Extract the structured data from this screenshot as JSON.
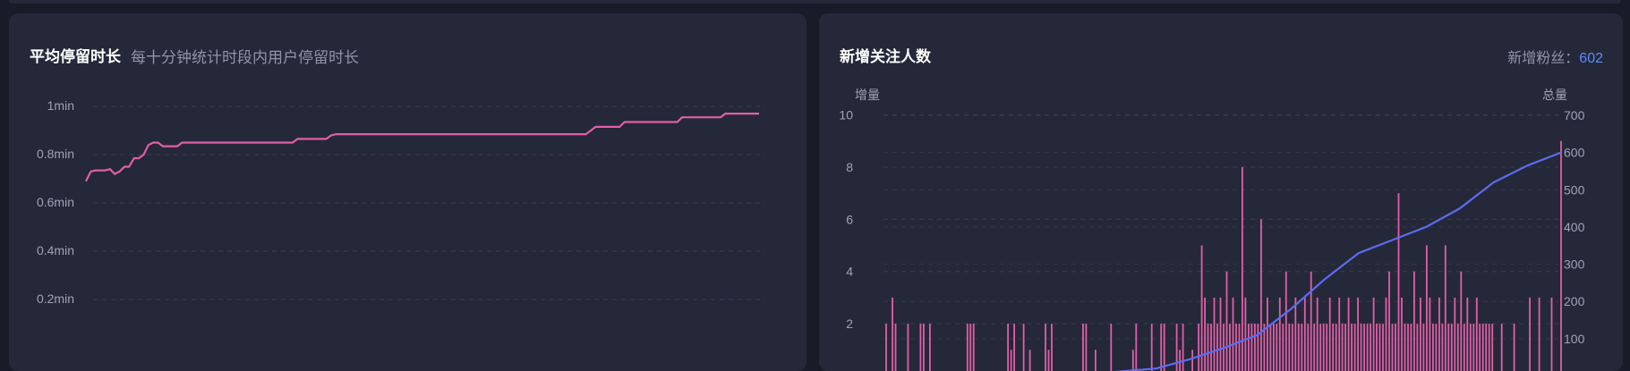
{
  "left_panel": {
    "title": "平均停留时长",
    "subtitle": "每十分钟统计时段内用户停留时长"
  },
  "right_panel": {
    "title": "新增关注人数",
    "fans_label": "新增粉丝：",
    "fans_value": "602",
    "left_axis_label": "增量",
    "right_axis_label": "总量"
  },
  "colors": {
    "background": "#191b28",
    "panel": "#252839",
    "pink_series": "#e05fa8",
    "blue_series": "#5b6cf0",
    "grid": "#3a3e52",
    "axis_text": "#9ea3b5"
  },
  "chart_data": [
    {
      "type": "line",
      "title": "平均停留时长",
      "subtitle": "每十分钟统计时段内用户停留时长",
      "y_tick_labels": [
        "0.2min",
        "0.4min",
        "0.6min",
        "0.8min",
        "1min"
      ],
      "y_tick_values": [
        0.2,
        0.4,
        0.6,
        0.8,
        1.0
      ],
      "ylim": [
        0,
        1.0
      ],
      "grid": true,
      "series": [
        {
          "color": "#e05fa8",
          "values": [
            0.69,
            0.73,
            0.735,
            0.735,
            0.735,
            0.74,
            0.72,
            0.73,
            0.75,
            0.75,
            0.785,
            0.785,
            0.8,
            0.84,
            0.85,
            0.85,
            0.835,
            0.835,
            0.835,
            0.835,
            0.85,
            0.85,
            0.85,
            0.85,
            0.85,
            0.85,
            0.85,
            0.85,
            0.85,
            0.85,
            0.85,
            0.85,
            0.85,
            0.85,
            0.85,
            0.85,
            0.85,
            0.85,
            0.85,
            0.85,
            0.85,
            0.85,
            0.85,
            0.85,
            0.865,
            0.865,
            0.865,
            0.865,
            0.865,
            0.865,
            0.865,
            0.88,
            0.885,
            0.885,
            0.885,
            0.885,
            0.885,
            0.885,
            0.885,
            0.885,
            0.885,
            0.885,
            0.885,
            0.885,
            0.885,
            0.885,
            0.885,
            0.885,
            0.885,
            0.885,
            0.885,
            0.885,
            0.885,
            0.885,
            0.885,
            0.885,
            0.885,
            0.885,
            0.885,
            0.885,
            0.885,
            0.885,
            0.885,
            0.885,
            0.885,
            0.885,
            0.885,
            0.885,
            0.885,
            0.885,
            0.885,
            0.885,
            0.885,
            0.885,
            0.885,
            0.885,
            0.885,
            0.885,
            0.885,
            0.885,
            0.885,
            0.885,
            0.885,
            0.885,
            0.885,
            0.9,
            0.915,
            0.915,
            0.915,
            0.915,
            0.915,
            0.915,
            0.935,
            0.935,
            0.935,
            0.935,
            0.935,
            0.935,
            0.935,
            0.935,
            0.935,
            0.935,
            0.935,
            0.935,
            0.955,
            0.955,
            0.955,
            0.955,
            0.955,
            0.955,
            0.955,
            0.955,
            0.955,
            0.97,
            0.97,
            0.97,
            0.97,
            0.97,
            0.97,
            0.97,
            0.97
          ]
        }
      ]
    },
    {
      "type": "bar+line",
      "title": "新增关注人数",
      "y_left_label": "增量",
      "y_right_label": "总量",
      "y_left_ticks": [
        2,
        4,
        6,
        8,
        10
      ],
      "y_right_ticks": [
        100,
        200,
        300,
        400,
        500,
        600,
        700
      ],
      "ylim_left": [
        0,
        10
      ],
      "ylim_right": [
        0,
        700
      ],
      "grid": true,
      "series": [
        {
          "name": "增量",
          "type": "bar",
          "color": "#e05fa8",
          "values": [
            2,
            0,
            3,
            2,
            0,
            0,
            0,
            2,
            0,
            0,
            0,
            2,
            2,
            0,
            2,
            0,
            0,
            0,
            0,
            0,
            0,
            0,
            0,
            0,
            0,
            0,
            2,
            2,
            2,
            0,
            0,
            0,
            0,
            0,
            0,
            0,
            0,
            0,
            0,
            2,
            1,
            2,
            0,
            0,
            2,
            0,
            1,
            0,
            0,
            0,
            0,
            2,
            1,
            2,
            0,
            0,
            0,
            0,
            0,
            0,
            0,
            0,
            0,
            2,
            2,
            0,
            0,
            1,
            0,
            0,
            0,
            0,
            2,
            0,
            0,
            0,
            0,
            0,
            0,
            1,
            2,
            0,
            0,
            0,
            0,
            2,
            0,
            0,
            2,
            2,
            0,
            0,
            0,
            2,
            1,
            2,
            0,
            0,
            1,
            0,
            2,
            5,
            3,
            2,
            2,
            3,
            2,
            3,
            2,
            4,
            2,
            3,
            2,
            2,
            8,
            3,
            2,
            2,
            2,
            2,
            6,
            2,
            3,
            2,
            2,
            2,
            3,
            2,
            4,
            2,
            2,
            3,
            2,
            2,
            3,
            2,
            4,
            2,
            3,
            2,
            2,
            2,
            3,
            2,
            2,
            3,
            2,
            2,
            3,
            2,
            2,
            3,
            2,
            2,
            2,
            2,
            3,
            2,
            2,
            2,
            3,
            4,
            2,
            2,
            7,
            3,
            2,
            2,
            2,
            4,
            2,
            3,
            2,
            5,
            3,
            2,
            2,
            3,
            2,
            5,
            2,
            2,
            3,
            2,
            4,
            2,
            3,
            2,
            2,
            3,
            2,
            2,
            2,
            2,
            2,
            0,
            0,
            2,
            0,
            0,
            0,
            2,
            0,
            0,
            0,
            0,
            3,
            0,
            0,
            3,
            0,
            0,
            0,
            3,
            0,
            0,
            9
          ]
        },
        {
          "name": "总量",
          "type": "line",
          "color": "#5b6cf0",
          "axis": "right",
          "x": [
            0,
            0.2,
            0.3,
            0.4,
            0.45,
            0.5,
            0.55,
            0.6,
            0.65,
            0.7,
            0.75,
            0.8,
            0.85,
            0.9,
            0.95,
            1.0
          ],
          "values": [
            0,
            0,
            5,
            20,
            45,
            75,
            110,
            180,
            260,
            330,
            365,
            400,
            450,
            520,
            565,
            600
          ]
        }
      ]
    }
  ]
}
